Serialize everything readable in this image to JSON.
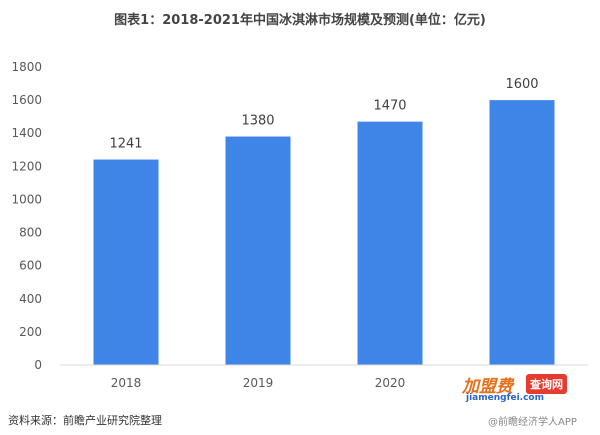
{
  "chart_data": {
    "type": "bar",
    "title": "图表1：2018-2021年中国冰淇淋市场规模及预测(单位：亿元)",
    "categories": [
      "2018",
      "2019",
      "2020",
      ""
    ],
    "values": [
      1241,
      1380,
      1470,
      1600
    ],
    "data_labels": [
      "1241",
      "1380",
      "1470",
      "1600"
    ],
    "yticks": [
      0,
      200,
      400,
      600,
      800,
      1000,
      1200,
      1400,
      1600,
      1800
    ],
    "ylim": [
      0,
      1800
    ],
    "grid": false,
    "bar_color": "#3f85e8"
  },
  "source": "资料来源：前瞻产业研究院整理",
  "watermarks": {
    "brand_main": "加盟费",
    "brand_badge": "查询网",
    "brand_url": "jiamengfei.com",
    "app": "@前瞻经济学人APP"
  }
}
